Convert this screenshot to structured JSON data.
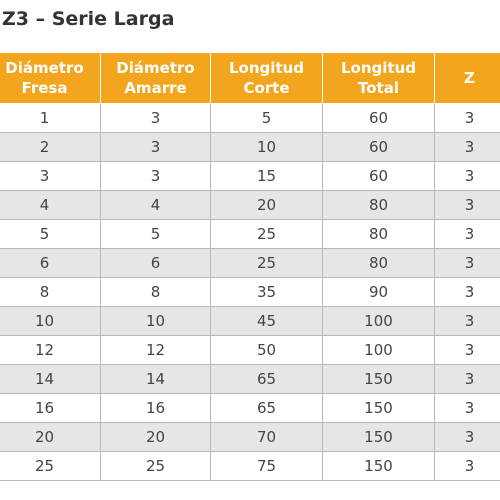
{
  "title": "Z3 – Serie Larga",
  "headers": [
    {
      "line1": "Diámetro",
      "line2": "Fresa"
    },
    {
      "line1": "Diámetro",
      "line2": "Amarre"
    },
    {
      "line1": "Longitud",
      "line2": "Corte"
    },
    {
      "line1": "Longitud",
      "line2": "Total"
    },
    {
      "line1": "Z",
      "line2": ""
    }
  ],
  "rows": [
    [
      "1",
      "3",
      "5",
      "60",
      "3"
    ],
    [
      "2",
      "3",
      "10",
      "60",
      "3"
    ],
    [
      "3",
      "3",
      "15",
      "60",
      "3"
    ],
    [
      "4",
      "4",
      "20",
      "80",
      "3"
    ],
    [
      "5",
      "5",
      "25",
      "80",
      "3"
    ],
    [
      "6",
      "6",
      "25",
      "80",
      "3"
    ],
    [
      "8",
      "8",
      "35",
      "90",
      "3"
    ],
    [
      "10",
      "10",
      "45",
      "100",
      "3"
    ],
    [
      "12",
      "12",
      "50",
      "100",
      "3"
    ],
    [
      "14",
      "14",
      "65",
      "150",
      "3"
    ],
    [
      "16",
      "16",
      "65",
      "150",
      "3"
    ],
    [
      "20",
      "20",
      "70",
      "150",
      "3"
    ],
    [
      "25",
      "25",
      "75",
      "150",
      "3"
    ]
  ],
  "colors": {
    "header_bg": "#f3a51d",
    "header_text": "#ffffff",
    "row_alt_bg": "#e6e6e6",
    "grid": "#b9b9b9"
  }
}
